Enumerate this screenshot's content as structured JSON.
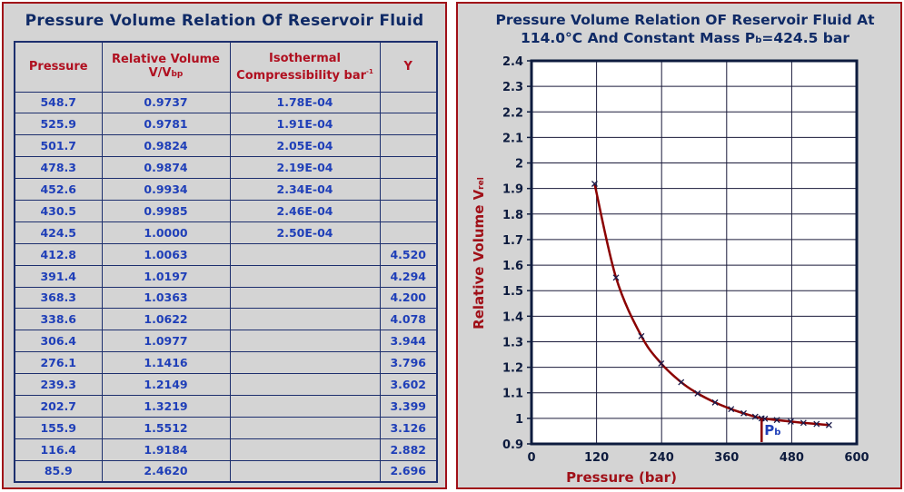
{
  "table": {
    "title": "Pressure Volume Relation Of Reservoir Fluid",
    "headers": {
      "pressure": "Pressure",
      "relvol_line1": "Relative Volume",
      "relvol_line2_main": "V/V",
      "relvol_line2_sub": "bp",
      "compress_line1": "Isothermal",
      "compress_line2": "Compressibility bar",
      "compress_sup": "-1",
      "y": "Y"
    },
    "rows": [
      {
        "p": "548.7",
        "v": "0.9737",
        "c": "1.78E-04",
        "y": ""
      },
      {
        "p": "525.9",
        "v": "0.9781",
        "c": "1.91E-04",
        "y": ""
      },
      {
        "p": "501.7",
        "v": "0.9824",
        "c": "2.05E-04",
        "y": ""
      },
      {
        "p": "478.3",
        "v": "0.9874",
        "c": "2.19E-04",
        "y": ""
      },
      {
        "p": "452.6",
        "v": "0.9934",
        "c": "2.34E-04",
        "y": ""
      },
      {
        "p": "430.5",
        "v": "0.9985",
        "c": "2.46E-04",
        "y": ""
      },
      {
        "p": "424.5",
        "v": "1.0000",
        "c": "2.50E-04",
        "y": ""
      },
      {
        "p": "412.8",
        "v": "1.0063",
        "c": "",
        "y": "4.520"
      },
      {
        "p": "391.4",
        "v": "1.0197",
        "c": "",
        "y": "4.294"
      },
      {
        "p": "368.3",
        "v": "1.0363",
        "c": "",
        "y": "4.200"
      },
      {
        "p": "338.6",
        "v": "1.0622",
        "c": "",
        "y": "4.078"
      },
      {
        "p": "306.4",
        "v": "1.0977",
        "c": "",
        "y": "3.944"
      },
      {
        "p": "276.1",
        "v": "1.1416",
        "c": "",
        "y": "3.796"
      },
      {
        "p": "239.3",
        "v": "1.2149",
        "c": "",
        "y": "3.602"
      },
      {
        "p": "202.7",
        "v": "1.3219",
        "c": "",
        "y": "3.399"
      },
      {
        "p": "155.9",
        "v": "1.5512",
        "c": "",
        "y": "3.126"
      },
      {
        "p": "116.4",
        "v": "1.9184",
        "c": "",
        "y": "2.882"
      },
      {
        "p": "85.9",
        "v": "2.4620",
        "c": "",
        "y": "2.696"
      }
    ]
  },
  "chart_data": {
    "type": "line",
    "title_line1": "Pressure Volume Relation OF Reservoir Fluid  At",
    "title_line2_pre": "114.0°C And Constant Mass P",
    "title_line2_sub": "b",
    "title_line2_post": "=424.5 bar",
    "xlabel": "Pressure (bar)",
    "ylabel_main": "Relative Volume V",
    "ylabel_sub": "rel",
    "xlim": [
      0,
      600
    ],
    "ylim": [
      0.9,
      2.4
    ],
    "xticks": [
      "0",
      "120",
      "240",
      "360",
      "480",
      "600"
    ],
    "yticks": [
      "0.9",
      "1",
      "1.1",
      "1.2",
      "1.3",
      "1.4",
      "1.5",
      "1.6",
      "1.7",
      "1.8",
      "1.9",
      "2",
      "2.1",
      "2.2",
      "2.3",
      "2.4"
    ],
    "grid": true,
    "bubble_point": {
      "x": 424.5,
      "y": 1.0,
      "label_main": "P",
      "label_sub": "b"
    },
    "series": [
      {
        "x": [
          548.7,
          525.9,
          501.7,
          478.3,
          452.6,
          430.5,
          424.5,
          412.8,
          391.4,
          368.3,
          338.6,
          306.4,
          276.1,
          239.3,
          202.7,
          155.9,
          116.4
        ],
        "y": [
          0.9737,
          0.9781,
          0.9824,
          0.9874,
          0.9934,
          0.9985,
          1.0,
          1.0063,
          1.0197,
          1.0363,
          1.0622,
          1.0977,
          1.1416,
          1.2149,
          1.3219,
          1.5512,
          1.9184
        ]
      }
    ],
    "colors": {
      "curve": "#8b0000",
      "marker": "#1a1a4a",
      "axis": "#0d1b3e",
      "label": "#a01018",
      "title": "#0f2a66",
      "pb": "#1f3fb8"
    }
  }
}
